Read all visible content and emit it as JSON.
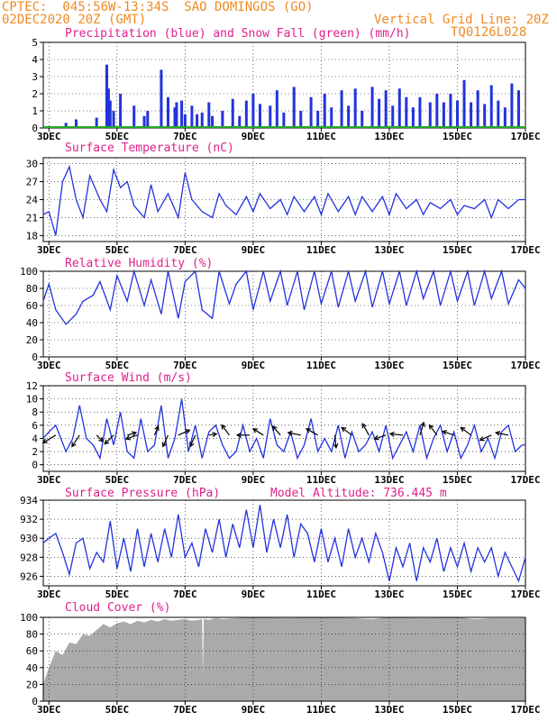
{
  "header": {
    "line1": "CPTEC:  045:56W-13:34S  SAO DOMINGOS (GO)",
    "line2": "02DEC2020 20Z (GMT)",
    "grid_note": "Vertical Grid Line: 20Z",
    "code": "TQ0126L028"
  },
  "colors": {
    "header": "#f08a24",
    "title": "#e0208c",
    "series": "#2233dd",
    "snow": "#22aa22",
    "cloud": "#aaaaaa"
  },
  "x_axis": {
    "tick_labels": [
      "3DEC",
      "5DEC",
      "7DEC",
      "9DEC",
      "11DEC",
      "13DEC",
      "15DEC",
      "17DEC"
    ],
    "tick_days": [
      3,
      5,
      7,
      9,
      11,
      13,
      15,
      17
    ],
    "xlim_days": [
      2.833,
      17.0
    ]
  },
  "chart_data": [
    {
      "type": "bar",
      "title": "Precipitation (blue) and Snow Fall (green) (mm/h)",
      "ylim": [
        0,
        5
      ],
      "yticks": [
        0,
        1,
        2,
        3,
        4,
        5
      ],
      "series": [
        {
          "name": "Precipitation",
          "x": [
            3.5,
            3.8,
            4.4,
            4.7,
            4.75,
            4.8,
            4.9,
            5.1,
            5.5,
            5.8,
            5.9,
            6.3,
            6.5,
            6.7,
            6.75,
            6.9,
            7.0,
            7.2,
            7.35,
            7.5,
            7.7,
            7.8,
            8.1,
            8.4,
            8.6,
            8.8,
            9.0,
            9.2,
            9.5,
            9.7,
            9.9,
            10.2,
            10.4,
            10.7,
            10.9,
            11.1,
            11.3,
            11.6,
            11.8,
            12.0,
            12.2,
            12.5,
            12.7,
            12.9,
            13.1,
            13.3,
            13.5,
            13.7,
            13.9,
            14.2,
            14.4,
            14.6,
            14.8,
            15.0,
            15.2,
            15.4,
            15.6,
            15.8,
            16.0,
            16.2,
            16.4,
            16.6,
            16.8
          ],
          "values": [
            0.3,
            0.5,
            0.6,
            3.7,
            2.3,
            1.6,
            1.0,
            2.0,
            1.3,
            0.7,
            1.0,
            3.4,
            1.8,
            1.2,
            1.5,
            1.6,
            0.8,
            1.3,
            0.8,
            0.9,
            1.5,
            0.7,
            1.0,
            1.7,
            0.7,
            1.6,
            2.0,
            1.4,
            1.3,
            2.2,
            0.9,
            2.4,
            1.0,
            1.8,
            1.0,
            2.0,
            1.2,
            2.2,
            1.3,
            2.3,
            1.0,
            2.4,
            1.7,
            2.2,
            1.3,
            2.3,
            1.8,
            1.2,
            1.8,
            1.5,
            2.0,
            1.5,
            2.0,
            1.6,
            2.8,
            1.5,
            2.2,
            1.4,
            2.5,
            1.6,
            1.2,
            2.6,
            2.2
          ]
        },
        {
          "name": "Snow Fall",
          "x": [
            2.833,
            17.0
          ],
          "values": [
            0,
            0
          ]
        }
      ]
    },
    {
      "type": "line",
      "title": "Surface Temperature (nC)",
      "ylim": [
        17,
        31
      ],
      "yticks": [
        18,
        21,
        24,
        27,
        30
      ],
      "x": [
        2.83,
        3.0,
        3.2,
        3.4,
        3.6,
        3.8,
        4.0,
        4.2,
        4.5,
        4.7,
        4.9,
        5.1,
        5.3,
        5.5,
        5.8,
        6.0,
        6.2,
        6.5,
        6.8,
        7.0,
        7.2,
        7.5,
        7.8,
        8.0,
        8.2,
        8.5,
        8.8,
        9.0,
        9.2,
        9.5,
        9.8,
        10.0,
        10.2,
        10.5,
        10.8,
        11.0,
        11.2,
        11.5,
        11.8,
        12.0,
        12.2,
        12.5,
        12.8,
        13.0,
        13.2,
        13.5,
        13.8,
        14.0,
        14.2,
        14.5,
        14.8,
        15.0,
        15.2,
        15.5,
        15.8,
        16.0,
        16.2,
        16.5,
        16.8,
        17.0
      ],
      "values": [
        21.5,
        22,
        18,
        27,
        29.5,
        24,
        21,
        28,
        24,
        22,
        29,
        26,
        27,
        23,
        21,
        26.5,
        22,
        25,
        21,
        28.5,
        24,
        22,
        21,
        25,
        23,
        21.5,
        24.5,
        22,
        25,
        22.5,
        24,
        21.5,
        24.5,
        22,
        24.5,
        21.5,
        25,
        22,
        24.5,
        21.5,
        24.5,
        22,
        24.5,
        21.5,
        25,
        22.5,
        24,
        21.5,
        23.5,
        22.5,
        24,
        21.5,
        23,
        22.5,
        24,
        21,
        24,
        22.5,
        24,
        24
      ]
    },
    {
      "type": "line",
      "title": "Relative Humidity (%)",
      "ylim": [
        0,
        100
      ],
      "yticks": [
        0,
        20,
        40,
        60,
        80,
        100
      ],
      "x": [
        2.83,
        3.0,
        3.2,
        3.5,
        3.8,
        4.0,
        4.3,
        4.5,
        4.8,
        5.0,
        5.3,
        5.5,
        5.8,
        6.0,
        6.3,
        6.5,
        6.8,
        7.0,
        7.3,
        7.5,
        7.8,
        8.0,
        8.3,
        8.5,
        8.8,
        9.0,
        9.3,
        9.5,
        9.8,
        10.0,
        10.3,
        10.5,
        10.8,
        11.0,
        11.3,
        11.5,
        11.8,
        12.0,
        12.3,
        12.5,
        12.8,
        13.0,
        13.3,
        13.5,
        13.8,
        14.0,
        14.3,
        14.5,
        14.8,
        15.0,
        15.3,
        15.5,
        15.8,
        16.0,
        16.3,
        16.5,
        16.8,
        17.0
      ],
      "values": [
        65,
        85,
        55,
        38,
        50,
        65,
        72,
        88,
        55,
        95,
        65,
        100,
        60,
        90,
        50,
        100,
        45,
        88,
        100,
        55,
        45,
        100,
        62,
        85,
        100,
        55,
        100,
        65,
        100,
        60,
        100,
        55,
        100,
        62,
        100,
        58,
        100,
        65,
        100,
        58,
        100,
        62,
        100,
        60,
        100,
        68,
        100,
        60,
        100,
        65,
        100,
        60,
        100,
        68,
        100,
        62,
        90,
        80
      ]
    },
    {
      "type": "line",
      "title": "Surface Wind (m/s)",
      "ylim": [
        -1,
        12
      ],
      "yticks": [
        0,
        2,
        4,
        6,
        8,
        10,
        12
      ],
      "x": [
        2.83,
        3.0,
        3.2,
        3.5,
        3.7,
        3.9,
        4.1,
        4.3,
        4.5,
        4.7,
        4.9,
        5.1,
        5.3,
        5.5,
        5.7,
        5.9,
        6.1,
        6.3,
        6.5,
        6.7,
        6.9,
        7.1,
        7.3,
        7.5,
        7.7,
        7.9,
        8.1,
        8.3,
        8.5,
        8.7,
        8.9,
        9.1,
        9.3,
        9.5,
        9.7,
        9.9,
        10.1,
        10.3,
        10.5,
        10.7,
        10.9,
        11.1,
        11.3,
        11.5,
        11.7,
        11.9,
        12.1,
        12.3,
        12.5,
        12.7,
        12.9,
        13.1,
        13.3,
        13.5,
        13.7,
        13.9,
        14.1,
        14.3,
        14.5,
        14.7,
        14.9,
        15.1,
        15.3,
        15.5,
        15.7,
        15.9,
        16.1,
        16.3,
        16.5,
        16.7,
        16.9,
        17.0
      ],
      "values": [
        4,
        5,
        6,
        2,
        4,
        9,
        4,
        3,
        1,
        7,
        3,
        8,
        2,
        1,
        7,
        2,
        3,
        9,
        1,
        4,
        10,
        2,
        6,
        1,
        5,
        6,
        3,
        1,
        2,
        6,
        2,
        4,
        1,
        7,
        3,
        2,
        5,
        1,
        3,
        7,
        2,
        4,
        2,
        6,
        1,
        5,
        2,
        3,
        5,
        2,
        6,
        1,
        3,
        5,
        2,
        6,
        1,
        4,
        6,
        2,
        5,
        1,
        3,
        6,
        2,
        4,
        1,
        5,
        6,
        2,
        3,
        3
      ],
      "arrows": [
        {
          "x": 3.2,
          "u": -1,
          "v": -0.6
        },
        {
          "x": 3.9,
          "u": -0.6,
          "v": -0.9
        },
        {
          "x": 4.4,
          "u": 0.5,
          "v": -0.5
        },
        {
          "x": 4.9,
          "u": -0.7,
          "v": -0.7
        },
        {
          "x": 5.3,
          "u": 0.7,
          "v": 0.2
        },
        {
          "x": 5.6,
          "u": -0.9,
          "v": -0.3
        },
        {
          "x": 6.1,
          "u": 0.3,
          "v": 0.7
        },
        {
          "x": 6.5,
          "u": -0.4,
          "v": -0.9
        },
        {
          "x": 6.8,
          "u": 0.9,
          "v": 0.4
        },
        {
          "x": 7.3,
          "u": -0.4,
          "v": -0.9
        },
        {
          "x": 7.7,
          "u": 0.6,
          "v": 0.1
        },
        {
          "x": 8.3,
          "u": -0.6,
          "v": 0.8
        },
        {
          "x": 8.9,
          "u": -1,
          "v": 0
        },
        {
          "x": 9.3,
          "u": -0.8,
          "v": 0.5
        },
        {
          "x": 9.8,
          "u": -0.6,
          "v": 0.7
        },
        {
          "x": 10.4,
          "u": -1,
          "v": 0.2
        },
        {
          "x": 10.9,
          "u": -0.9,
          "v": 0.5
        },
        {
          "x": 11.4,
          "u": 0.1,
          "v": -1
        },
        {
          "x": 11.9,
          "u": -0.8,
          "v": 0.6
        },
        {
          "x": 12.4,
          "u": -0.5,
          "v": 0.9
        },
        {
          "x": 12.9,
          "u": -0.9,
          "v": -0.3
        },
        {
          "x": 13.4,
          "u": -1,
          "v": 0.1
        },
        {
          "x": 13.9,
          "u": 0.3,
          "v": 1
        },
        {
          "x": 14.4,
          "u": -0.6,
          "v": 0.8
        },
        {
          "x": 14.9,
          "u": -0.9,
          "v": 0.3
        },
        {
          "x": 15.4,
          "u": -0.8,
          "v": 0.6
        },
        {
          "x": 16.0,
          "u": -0.9,
          "v": -0.4
        },
        {
          "x": 16.5,
          "u": -1,
          "v": 0.2
        }
      ]
    },
    {
      "type": "line",
      "title": "Surface Pressure (hPa)",
      "subtitle": "Model Altitude: 736.445 m",
      "ylim": [
        925,
        934
      ],
      "yticks": [
        926,
        928,
        930,
        932,
        934
      ],
      "x": [
        2.83,
        3.0,
        3.2,
        3.4,
        3.6,
        3.8,
        4.0,
        4.2,
        4.4,
        4.6,
        4.8,
        5.0,
        5.2,
        5.4,
        5.6,
        5.8,
        6.0,
        6.2,
        6.4,
        6.6,
        6.8,
        7.0,
        7.2,
        7.4,
        7.6,
        7.8,
        8.0,
        8.2,
        8.4,
        8.6,
        8.8,
        9.0,
        9.2,
        9.4,
        9.6,
        9.8,
        10.0,
        10.2,
        10.4,
        10.6,
        10.8,
        11.0,
        11.2,
        11.4,
        11.6,
        11.8,
        12.0,
        12.2,
        12.4,
        12.6,
        12.8,
        13.0,
        13.2,
        13.4,
        13.6,
        13.8,
        14.0,
        14.2,
        14.4,
        14.6,
        14.8,
        15.0,
        15.2,
        15.4,
        15.6,
        15.8,
        16.0,
        16.2,
        16.4,
        16.6,
        16.8,
        17.0
      ],
      "values": [
        929.5,
        930,
        930.5,
        928.5,
        926.2,
        929.5,
        930,
        926.8,
        928.5,
        927.5,
        931.8,
        926.8,
        930,
        926.5,
        931,
        927,
        930.5,
        927.5,
        931,
        928,
        932.5,
        928,
        929.5,
        927,
        931,
        928.5,
        932,
        928,
        931.5,
        929,
        933,
        929,
        933.5,
        928.5,
        932,
        929,
        932.5,
        928,
        931.5,
        930.5,
        927.5,
        931,
        927.5,
        930,
        927,
        931,
        928,
        930,
        927.5,
        930.5,
        928.5,
        925.5,
        929,
        927,
        929.5,
        925.5,
        929,
        927.5,
        930,
        926.5,
        929,
        927,
        929.5,
        926.5,
        929,
        927.5,
        929,
        926,
        928.5,
        927,
        925.5,
        928
      ]
    },
    {
      "type": "area",
      "title": "Cloud Cover (%)",
      "ylim": [
        0,
        100
      ],
      "yticks": [
        0,
        20,
        40,
        60,
        80,
        100
      ],
      "x": [
        2.83,
        3.0,
        3.2,
        3.4,
        3.6,
        3.8,
        4.0,
        4.2,
        4.4,
        4.6,
        4.8,
        5.0,
        5.2,
        5.4,
        5.6,
        5.8,
        6.0,
        6.2,
        6.4,
        6.6,
        6.8,
        7.0,
        7.2,
        7.4,
        7.5,
        7.52,
        7.55,
        7.7,
        7.9,
        8.1,
        8.5,
        9.0,
        10.0,
        11.0,
        12.0,
        12.5,
        13.0,
        14.0,
        15.0,
        15.5,
        16.0,
        17.0
      ],
      "values": [
        20,
        40,
        60,
        55,
        70,
        68,
        80,
        78,
        85,
        92,
        88,
        93,
        95,
        92,
        96,
        94,
        97,
        95,
        98,
        96,
        97,
        98,
        96,
        97,
        98,
        30,
        98,
        97,
        99,
        98,
        99,
        100,
        99,
        100,
        99,
        98,
        100,
        99,
        100,
        98,
        99,
        99
      ]
    }
  ]
}
